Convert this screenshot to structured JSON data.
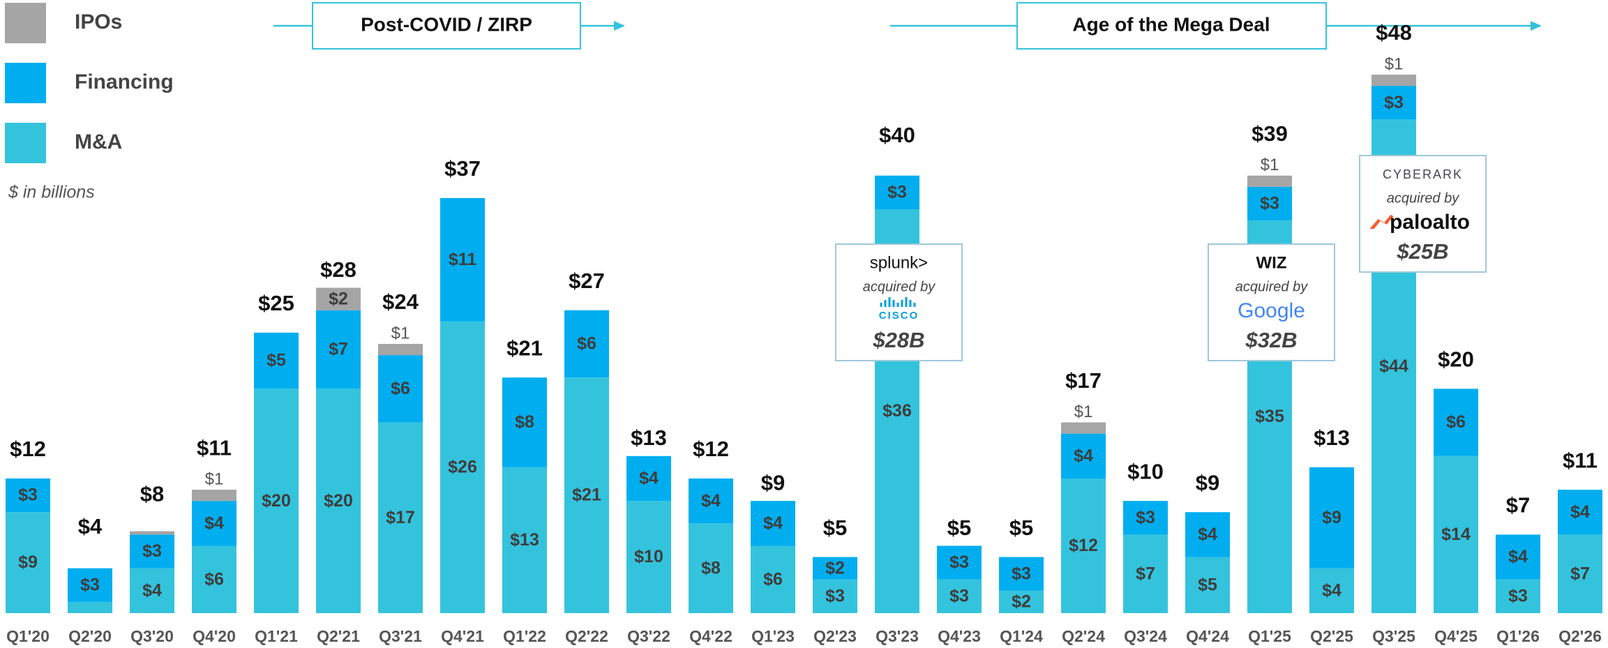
{
  "chart_data": {
    "type": "stacked_bar",
    "note": "$ in billions",
    "categories": [
      "Q1'20",
      "Q2'20",
      "Q3'20",
      "Q4'20",
      "Q1'21",
      "Q2'21",
      "Q3'21",
      "Q4'21",
      "Q1'22",
      "Q2'22",
      "Q3'22",
      "Q4'22",
      "Q1'23",
      "Q2'23",
      "Q3'23",
      "Q4'23",
      "Q1'24",
      "Q2'24",
      "Q3'24",
      "Q4'24",
      "Q1'25",
      "Q2'25",
      "Q3'25",
      "Q4'25",
      "Q1'26",
      "Q2'26"
    ],
    "series": [
      {
        "name": "IPOs",
        "color": "#a5a5a5",
        "values": [
          null,
          null,
          0.3,
          1,
          null,
          2,
          1,
          null,
          null,
          null,
          null,
          null,
          null,
          null,
          null,
          null,
          null,
          1,
          null,
          null,
          1,
          null,
          1,
          null,
          null,
          null
        ],
        "value_labels": [
          null,
          null,
          null,
          "$1",
          null,
          "$2",
          "$1",
          null,
          null,
          null,
          null,
          null,
          null,
          null,
          null,
          null,
          null,
          "$1",
          null,
          null,
          "$1",
          null,
          "$1",
          null,
          null,
          null
        ]
      },
      {
        "name": "Financing",
        "color": "#00aeef",
        "values": [
          3,
          3,
          3,
          4,
          5,
          7,
          6,
          11,
          8,
          6,
          4,
          4,
          4,
          2,
          3,
          3,
          3,
          4,
          3,
          4,
          3,
          9,
          3,
          6,
          4,
          4
        ],
        "value_labels": [
          "$3",
          "$3",
          "$3",
          "$4",
          "$5",
          "$7",
          "$6",
          "$11",
          "$8",
          "$6",
          "$4",
          "$4",
          "$4",
          "$2",
          "$3",
          "$3",
          "$3",
          "$4",
          "$3",
          "$4",
          "$3",
          "$9",
          "$3",
          "$6",
          "$4",
          "$4"
        ]
      },
      {
        "name": "M&A",
        "color": "#34c3dd",
        "values": [
          9,
          1,
          4,
          6,
          20,
          20,
          17,
          26,
          13,
          21,
          10,
          8,
          6,
          3,
          36,
          3,
          2,
          12,
          7,
          5,
          35,
          4,
          44,
          14,
          3,
          7
        ],
        "value_labels": [
          "$9",
          "$1",
          "$4",
          "$6",
          "$20",
          "$20",
          "$17",
          "$26",
          "$13",
          "$21",
          "$10",
          "$8",
          "$6",
          "$3",
          "$36",
          "$3",
          "$2",
          "$12",
          "$7",
          "$5",
          "$35",
          "$4",
          "$44",
          "$14",
          "$3",
          "$7"
        ]
      }
    ],
    "totals": [
      12,
      4,
      8,
      11,
      25,
      28,
      24,
      37,
      21,
      27,
      13,
      12,
      9,
      5,
      40,
      5,
      5,
      17,
      10,
      9,
      39,
      13,
      48,
      20,
      7,
      11
    ],
    "total_labels": [
      "$12",
      "$4",
      "$8",
      "$11",
      "$25",
      "$28",
      "$24",
      "$37",
      "$21",
      "$27",
      "$13",
      "$12",
      "$9",
      "$5",
      "$40",
      "$5",
      "$5",
      "$17",
      "$10",
      "$9",
      "$39",
      "$13",
      "$48",
      "$20",
      "$7",
      "$11"
    ],
    "ylim": [
      0,
      48
    ],
    "legend": "top-left",
    "eras": [
      {
        "label": "Post-COVID / ZIRP"
      },
      {
        "label": "Age of the Mega Deal"
      }
    ],
    "callouts": [
      {
        "company": "splunk>",
        "text": "acquired by",
        "acquirer": "CISCO",
        "amount": "$28B"
      },
      {
        "company": "WIZ",
        "text": "acquired by",
        "acquirer": "Google",
        "amount": "$32B"
      },
      {
        "company": "CYBERARK",
        "text": "acquired by",
        "acquirer": "paloalto",
        "amount": "$25B"
      }
    ]
  }
}
